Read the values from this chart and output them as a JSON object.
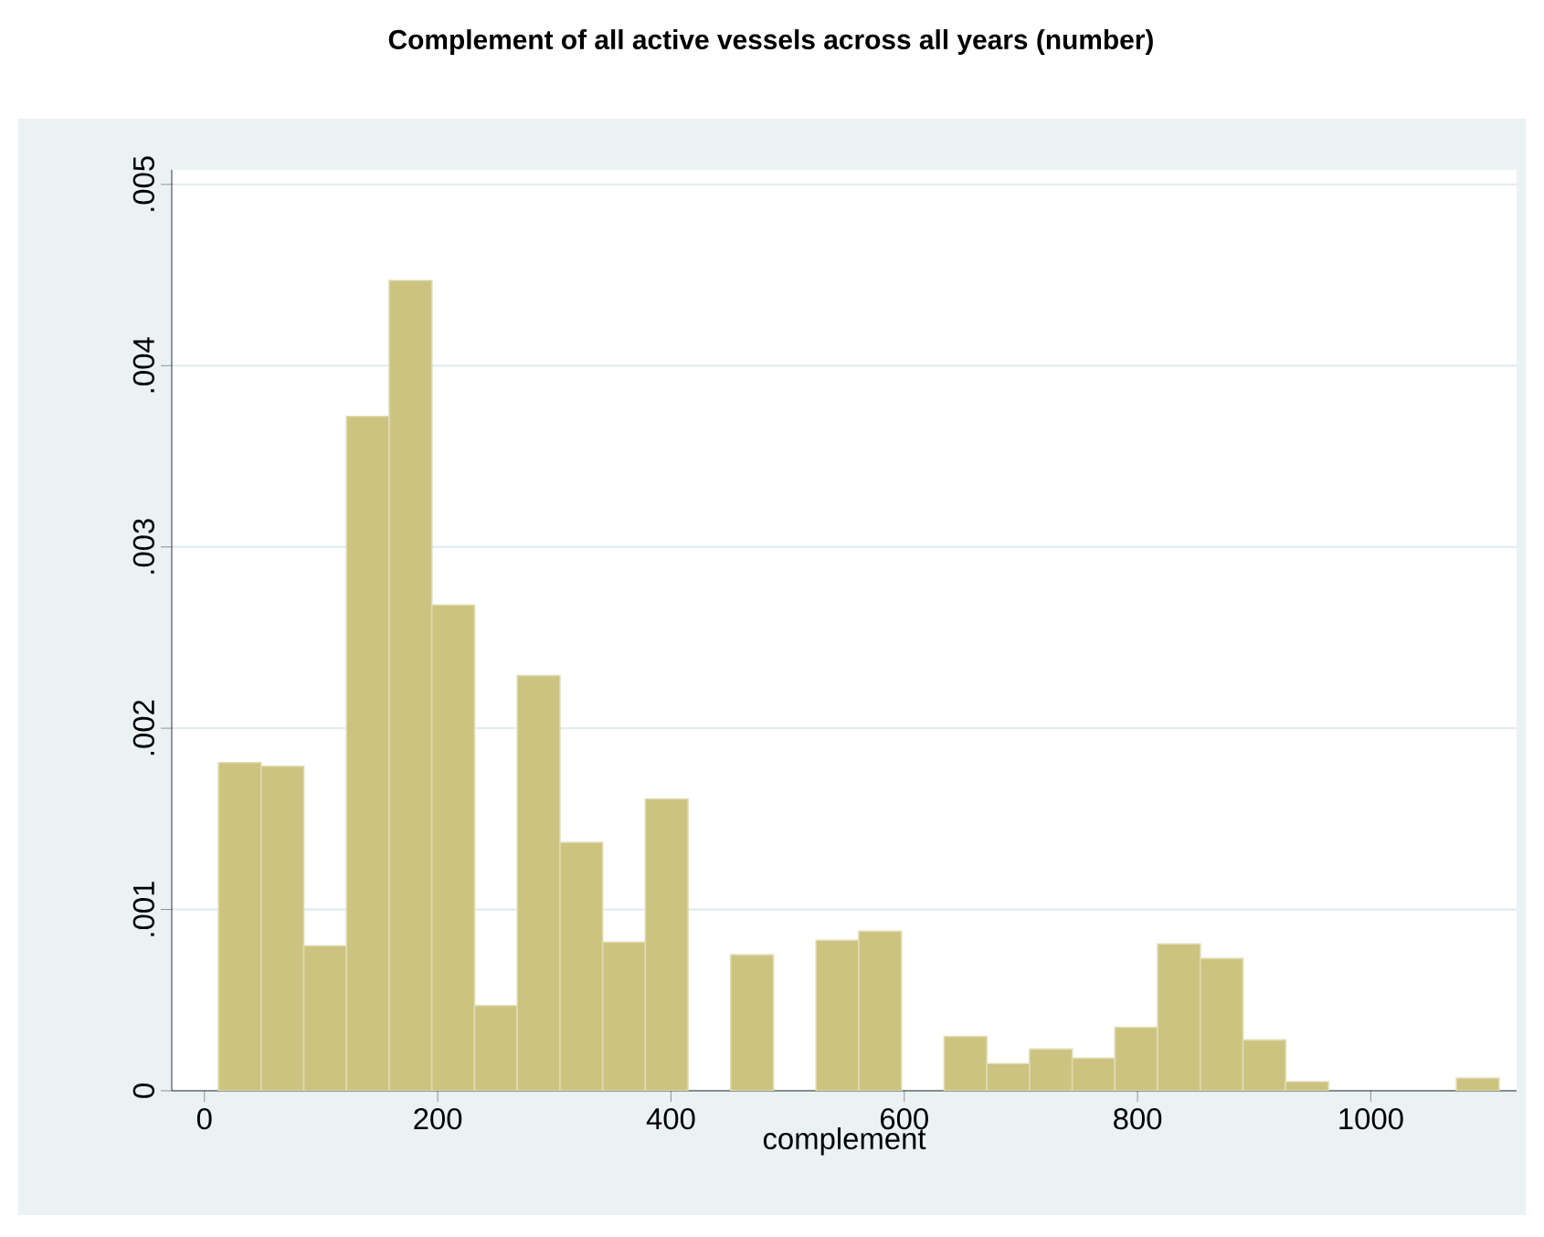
{
  "chart_data": {
    "type": "histogram",
    "title": "Complement of all active vessels across all years (number)",
    "xlabel": "complement",
    "bins": [
      12,
      48.6,
      85.2,
      121.8,
      158.4,
      195,
      231.6,
      268.2,
      304.8,
      341.4,
      378,
      414.6,
      451.2,
      487.8,
      524.4,
      561,
      597.6,
      634.2,
      670.8,
      707.4,
      744,
      780.6,
      817.2,
      853.8,
      890.4,
      927,
      963.6,
      1000.2,
      1036.8,
      1073.4,
      1110
    ],
    "values": [
      0.00181,
      0.00179,
      0.0008,
      0.00372,
      0.00447,
      0.00268,
      0.00047,
      0.00229,
      0.00137,
      0.00082,
      0.00161,
      0,
      0.00075,
      0,
      0.00083,
      0.00088,
      0,
      0.0003,
      0.00015,
      0.00023,
      0.00018,
      0.00035,
      0.00081,
      0.00073,
      0.00028,
      5e-05,
      0,
      0,
      0,
      7e-05
    ],
    "color": "#cbc37f",
    "xlim": [
      -28,
      1125
    ],
    "ylim": [
      0,
      0.00508
    ],
    "xticks": [
      0,
      200,
      400,
      600,
      800,
      1000
    ],
    "yticks": [
      0,
      {
        "value": 0.001,
        "label": ".001"
      },
      {
        "value": 0.002,
        "label": ".002"
      },
      {
        "value": 0.003,
        "label": ".003"
      },
      {
        "value": 0.004,
        "label": ".004"
      },
      {
        "value": 0.005,
        "label": ".005"
      }
    ],
    "grid": "y"
  }
}
